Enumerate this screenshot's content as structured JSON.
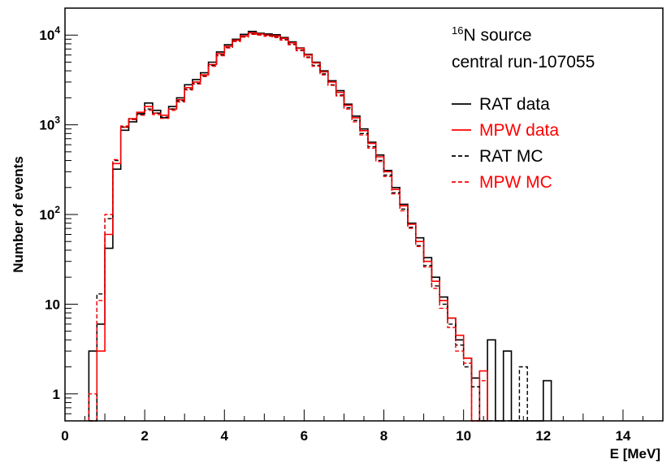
{
  "chart_data": {
    "type": "line",
    "plot_style": "step-histogram",
    "xlabel": "E [MeV]",
    "ylabel": "Number of events",
    "xlim": [
      0,
      15
    ],
    "ylim": [
      0.5,
      20000
    ],
    "yscale": "log",
    "x_ticks": [
      "0",
      "2",
      "4",
      "6",
      "8",
      "10",
      "12",
      "14"
    ],
    "y_ticks": [
      {
        "value": 1,
        "base": "1",
        "exp": ""
      },
      {
        "value": 10,
        "base": "10",
        "exp": ""
      },
      {
        "value": 100,
        "base": "10",
        "exp": "2"
      },
      {
        "value": 1000,
        "base": "10",
        "exp": "3"
      },
      {
        "value": 10000,
        "base": "10",
        "exp": "4"
      }
    ],
    "bin_width": 0.2,
    "bin_edges_start": 0.6,
    "annotation": {
      "sup": "16",
      "line1": "N source",
      "line2": "central run-107055"
    },
    "legend_position": "top-right",
    "colors": {
      "black": "#000000",
      "red": "#ff0000"
    },
    "series": [
      {
        "name": "RAT data",
        "color": "#000000",
        "dashed": false,
        "values": [
          3,
          6,
          42,
          320,
          870,
          1080,
          1330,
          1750,
          1450,
          1200,
          1600,
          2000,
          2800,
          3200,
          3800,
          5000,
          6500,
          7800,
          9000,
          10200,
          11000,
          10500,
          10300,
          10100,
          9400,
          8400,
          7200,
          6100,
          5000,
          4000,
          3100,
          2400,
          1700,
          1250,
          900,
          640,
          460,
          310,
          200,
          130,
          80,
          55,
          33,
          20,
          12,
          7,
          4,
          2.5,
          1.5,
          0.5,
          4,
          0.5,
          3,
          0.5,
          0.5,
          0.5,
          0.5,
          1.4
        ]
      },
      {
        "name": "MPW data",
        "color": "#ff0000",
        "dashed": false,
        "values": [
          0.5,
          3,
          60,
          370,
          940,
          1170,
          1380,
          1600,
          1350,
          1280,
          1500,
          1900,
          2600,
          3000,
          3600,
          4700,
          6200,
          7500,
          8800,
          9800,
          10600,
          10300,
          10000,
          9800,
          9200,
          8200,
          7100,
          6000,
          4900,
          3900,
          3000,
          2300,
          1650,
          1200,
          860,
          620,
          440,
          300,
          190,
          125,
          78,
          50,
          30,
          18,
          11,
          7,
          4.5,
          2.5,
          0.5,
          1.8
        ]
      },
      {
        "name": "RAT MC",
        "color": "#000000",
        "dashed": true,
        "values": [
          0.5,
          13,
          90,
          400,
          950,
          1150,
          1300,
          1500,
          1350,
          1220,
          1500,
          1850,
          2500,
          2900,
          3500,
          4600,
          6000,
          7300,
          8600,
          9600,
          10300,
          10100,
          9800,
          9500,
          8900,
          7900,
          6800,
          5700,
          4600,
          3700,
          2800,
          2150,
          1550,
          1120,
          800,
          570,
          400,
          275,
          175,
          115,
          72,
          45,
          27,
          16,
          10,
          6,
          3.5,
          2,
          1.2,
          0.5,
          0.5,
          0.5,
          0.5,
          0.5,
          2
        ]
      },
      {
        "name": "MPW MC",
        "color": "#ff0000",
        "dashed": true,
        "values": [
          1,
          11,
          100,
          410,
          970,
          1140,
          1280,
          1450,
          1300,
          1180,
          1450,
          1800,
          2450,
          2850,
          3450,
          4500,
          5900,
          7200,
          8500,
          9500,
          10200,
          10000,
          9700,
          9400,
          8800,
          7800,
          6700,
          5600,
          4500,
          3600,
          2750,
          2100,
          1500,
          1080,
          770,
          550,
          390,
          265,
          170,
          110,
          70,
          44,
          26,
          15,
          9,
          5.5,
          3,
          2.2,
          0.5,
          1.4
        ]
      }
    ]
  }
}
